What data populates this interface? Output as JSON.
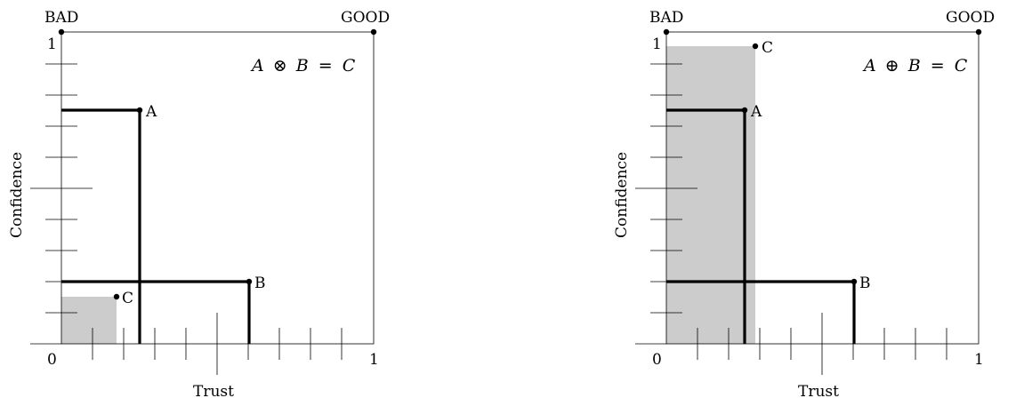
{
  "panels": [
    {
      "corner_left": "BAD",
      "corner_right": "GOOD",
      "ylabel": "Confidence",
      "xlabel": "Trust",
      "origin_label": "0",
      "x_end_label": "1",
      "y_end_label": "1",
      "equation": {
        "lhs_a": "A",
        "op": "⊗",
        "lhs_b": "B",
        "eq": "=",
        "rhs": "C"
      },
      "points": [
        {
          "label": "A",
          "trust": 0.25,
          "confidence": 0.75
        },
        {
          "label": "B",
          "trust": 0.6,
          "confidence": 0.2
        },
        {
          "label": "C",
          "trust": 0.175,
          "confidence": 0.15
        }
      ]
    },
    {
      "corner_left": "BAD",
      "corner_right": "GOOD",
      "ylabel": "Confidence",
      "xlabel": "Trust",
      "origin_label": "0",
      "x_end_label": "1",
      "y_end_label": "1",
      "equation": {
        "lhs_a": "A",
        "op": "⊕",
        "lhs_b": "B",
        "eq": "=",
        "rhs": "C"
      },
      "points": [
        {
          "label": "A",
          "trust": 0.25,
          "confidence": 0.75
        },
        {
          "label": "B",
          "trust": 0.6,
          "confidence": 0.2
        },
        {
          "label": "C",
          "trust": 0.29,
          "confidence": 0.955
        }
      ]
    }
  ],
  "colors": {
    "stroke": "#000000",
    "shade": "#cccccc"
  }
}
